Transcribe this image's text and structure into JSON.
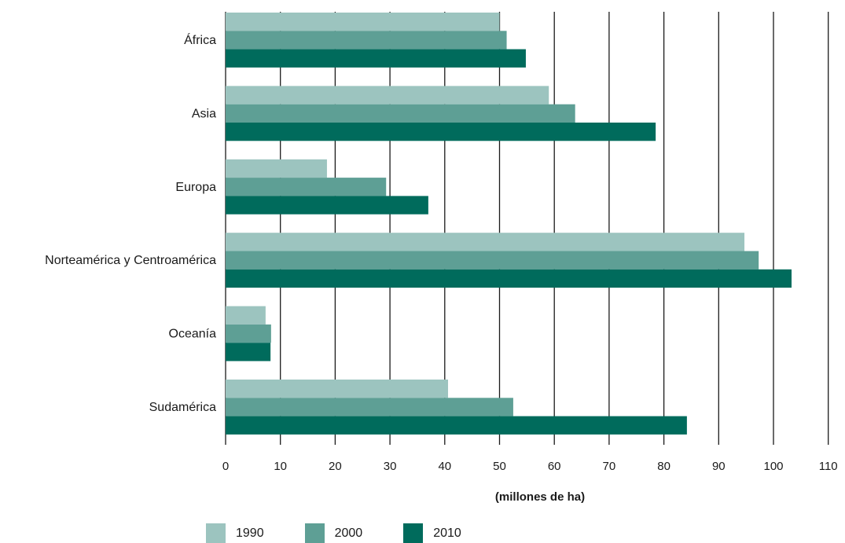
{
  "chart_data": {
    "type": "bar",
    "orientation": "horizontal",
    "categories": [
      "África",
      "Asia",
      "Europa",
      "Norteamérica y Centroamérica",
      "Oceanía",
      "Sudamérica"
    ],
    "series": [
      {
        "name": "1990",
        "color": "#9cc4bf",
        "values": [
          50.0,
          59.0,
          18.5,
          94.7,
          7.3,
          40.6
        ]
      },
      {
        "name": "2000",
        "color": "#5e9f95",
        "values": [
          51.3,
          63.8,
          29.3,
          97.3,
          8.3,
          52.5
        ]
      },
      {
        "name": "2010",
        "color": "#006b5c",
        "values": [
          54.8,
          78.5,
          37.0,
          103.3,
          8.2,
          84.2
        ]
      }
    ],
    "xlabel": "(millones de ha)",
    "xlim": [
      0,
      110
    ],
    "xticks": [
      0,
      10,
      20,
      30,
      40,
      50,
      60,
      70,
      80,
      90,
      100,
      110
    ],
    "grid": "vertical",
    "legend": "bottom"
  }
}
